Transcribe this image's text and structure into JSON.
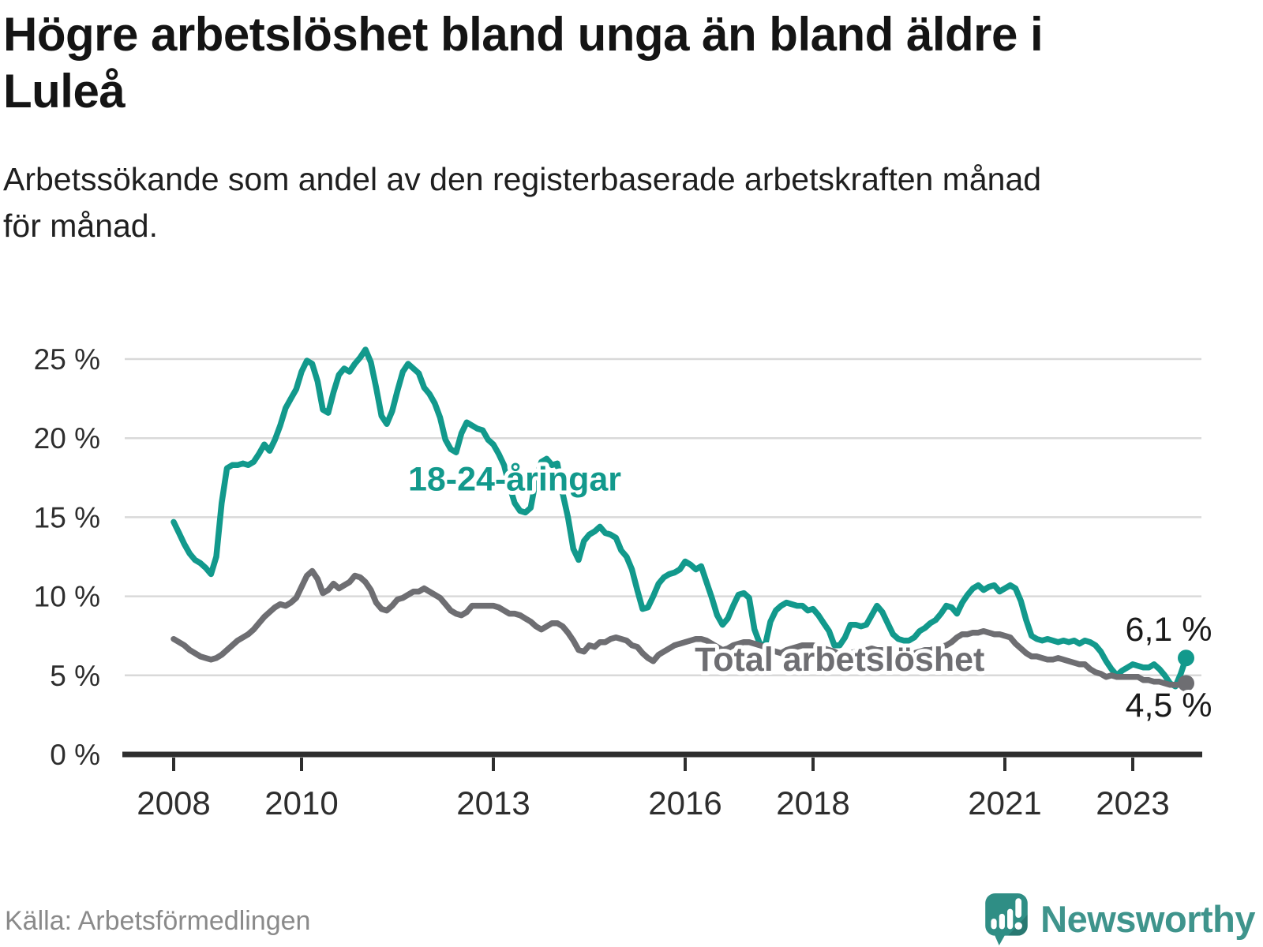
{
  "header": {
    "title": "Högre arbetslöshet bland unga än bland äldre i Luleå",
    "title_lines": [
      "Högre arbetslöshet bland unga än bland äldre i",
      "Luleå"
    ],
    "subtitle": "Arbetssökande som andel av den registerbaserade arbetskraften månad för månad.",
    "subtitle_lines": [
      "Arbetssökande som andel av den registerbaserade arbetskraften månad",
      "för månad."
    ]
  },
  "footer": {
    "source": "Källa: Arbetsförmedlingen",
    "brand": "Newsworthy"
  },
  "colors": {
    "teal": "#12998c",
    "gray": "#6e6e72",
    "grid": "#d9d9d9",
    "axis": "#2e2e2e",
    "logo_teal": "#2f8e85",
    "wordmark": "#3f948c"
  },
  "chart_data": {
    "type": "line",
    "title": "Högre arbetslöshet bland unga än bland äldre i Luleå",
    "xlabel": "",
    "ylabel": "Arbetssökande som andel av den registerbaserade arbetskraften",
    "x_unit": "month",
    "x_range": [
      "2008-01",
      "2023-11"
    ],
    "ylim": [
      0,
      26
    ],
    "grid": true,
    "legend_position": "inline-labels",
    "x_ticks": [
      {
        "year": 2008,
        "label": "2008"
      },
      {
        "year": 2010,
        "label": "2010"
      },
      {
        "year": 2013,
        "label": "2013"
      },
      {
        "year": 2016,
        "label": "2016"
      },
      {
        "year": 2018,
        "label": "2018"
      },
      {
        "year": 2021,
        "label": "2021"
      },
      {
        "year": 2023,
        "label": "2023"
      }
    ],
    "y_ticks": [
      {
        "value": 0,
        "label": "0 %"
      },
      {
        "value": 5,
        "label": "5 %"
      },
      {
        "value": 10,
        "label": "10 %"
      },
      {
        "value": 15,
        "label": "15 %"
      },
      {
        "value": 20,
        "label": "20 %"
      },
      {
        "value": 25,
        "label": "25 %"
      }
    ],
    "series": [
      {
        "id": "youth",
        "name": "18-24-åringar",
        "color": "#12998c",
        "end_label": "6,1 %",
        "end_label_side": "above",
        "annotation": {
          "month_index": 64,
          "value": 16.7
        },
        "values": [
          14.7,
          14.0,
          13.3,
          12.7,
          12.3,
          12.1,
          11.8,
          11.4,
          12.5,
          15.9,
          18.1,
          18.3,
          18.3,
          18.4,
          18.3,
          18.5,
          19.0,
          19.6,
          19.2,
          19.9,
          20.8,
          21.9,
          22.5,
          23.1,
          24.2,
          24.9,
          24.7,
          23.6,
          21.8,
          21.6,
          22.9,
          24.0,
          24.4,
          24.2,
          24.7,
          25.1,
          25.6,
          24.8,
          23.2,
          21.4,
          20.9,
          21.7,
          23.0,
          24.2,
          24.7,
          24.4,
          24.1,
          23.2,
          22.8,
          22.2,
          21.3,
          19.9,
          19.3,
          19.1,
          20.3,
          21.0,
          20.8,
          20.6,
          20.5,
          19.9,
          19.6,
          19.0,
          18.3,
          17.0,
          15.9,
          15.4,
          15.3,
          15.6,
          17.4,
          18.5,
          18.7,
          18.3,
          18.4,
          16.5,
          15.0,
          13.0,
          12.3,
          13.5,
          13.9,
          14.1,
          14.4,
          14.0,
          13.9,
          13.7,
          12.9,
          12.5,
          11.7,
          10.4,
          9.2,
          9.3,
          10.0,
          10.8,
          11.2,
          11.4,
          11.5,
          11.7,
          12.2,
          12.0,
          11.7,
          11.9,
          10.9,
          9.9,
          8.8,
          8.2,
          8.6,
          9.4,
          10.1,
          10.2,
          9.9,
          7.9,
          7.0,
          6.9,
          8.4,
          9.1,
          9.4,
          9.6,
          9.5,
          9.4,
          9.4,
          9.1,
          9.2,
          8.8,
          8.3,
          7.8,
          6.9,
          6.9,
          7.4,
          8.2,
          8.2,
          8.1,
          8.2,
          8.8,
          9.4,
          9.0,
          8.3,
          7.6,
          7.3,
          7.2,
          7.2,
          7.4,
          7.8,
          8.0,
          8.3,
          8.5,
          8.9,
          9.4,
          9.3,
          8.9,
          9.6,
          10.1,
          10.5,
          10.7,
          10.4,
          10.6,
          10.7,
          10.3,
          10.5,
          10.7,
          10.5,
          9.7,
          8.5,
          7.5,
          7.3,
          7.2,
          7.3,
          7.2,
          7.1,
          7.2,
          7.1,
          7.2,
          7.0,
          7.2,
          7.1,
          6.9,
          6.5,
          5.9,
          5.4,
          5.0,
          5.3,
          5.5,
          5.7,
          5.6,
          5.5,
          5.5,
          5.7,
          5.4,
          5.0,
          4.5,
          4.3,
          5.1,
          6.1
        ]
      },
      {
        "id": "total",
        "name": "Total arbetslöshet",
        "color": "#6e6e72",
        "end_label": "4,5 %",
        "end_label_side": "below",
        "annotation": {
          "month_index": 125,
          "value": 5.3
        },
        "values": [
          7.3,
          7.1,
          6.9,
          6.6,
          6.4,
          6.2,
          6.1,
          6.0,
          6.1,
          6.3,
          6.6,
          6.9,
          7.2,
          7.4,
          7.6,
          7.9,
          8.3,
          8.7,
          9.0,
          9.3,
          9.5,
          9.4,
          9.6,
          9.9,
          10.6,
          11.3,
          11.6,
          11.1,
          10.2,
          10.4,
          10.8,
          10.5,
          10.7,
          10.9,
          11.3,
          11.2,
          10.9,
          10.4,
          9.6,
          9.2,
          9.1,
          9.4,
          9.8,
          9.9,
          10.1,
          10.3,
          10.3,
          10.5,
          10.3,
          10.1,
          9.9,
          9.5,
          9.1,
          8.9,
          8.8,
          9.0,
          9.4,
          9.4,
          9.4,
          9.4,
          9.4,
          9.3,
          9.1,
          8.9,
          8.9,
          8.8,
          8.6,
          8.4,
          8.1,
          7.9,
          8.1,
          8.3,
          8.3,
          8.1,
          7.7,
          7.2,
          6.6,
          6.5,
          6.9,
          6.8,
          7.1,
          7.1,
          7.3,
          7.4,
          7.3,
          7.2,
          6.9,
          6.8,
          6.4,
          6.1,
          5.9,
          6.3,
          6.5,
          6.7,
          6.9,
          7.0,
          7.1,
          7.2,
          7.3,
          7.3,
          7.2,
          7.0,
          6.8,
          6.6,
          6.7,
          6.9,
          7.0,
          7.1,
          7.1,
          7.0,
          6.9,
          6.8,
          6.6,
          6.5,
          6.4,
          6.6,
          6.7,
          6.8,
          6.9,
          6.9,
          6.9,
          6.8,
          6.7,
          6.6,
          6.5,
          6.3,
          6.3,
          6.4,
          6.5,
          6.5,
          6.6,
          6.7,
          6.6,
          6.6,
          6.5,
          6.4,
          6.3,
          6.3,
          6.3,
          6.4,
          6.5,
          6.6,
          6.6,
          6.7,
          6.8,
          6.9,
          7.1,
          7.4,
          7.6,
          7.6,
          7.7,
          7.7,
          7.8,
          7.7,
          7.6,
          7.6,
          7.5,
          7.4,
          7.0,
          6.7,
          6.4,
          6.2,
          6.2,
          6.1,
          6.0,
          6.0,
          6.1,
          6.0,
          5.9,
          5.8,
          5.7,
          5.7,
          5.4,
          5.2,
          5.1,
          4.9,
          5.0,
          4.9,
          4.9,
          4.9,
          4.9,
          4.9,
          4.7,
          4.7,
          4.6,
          4.6,
          4.5,
          4.4,
          4.4,
          4.4,
          4.5
        ]
      }
    ]
  }
}
